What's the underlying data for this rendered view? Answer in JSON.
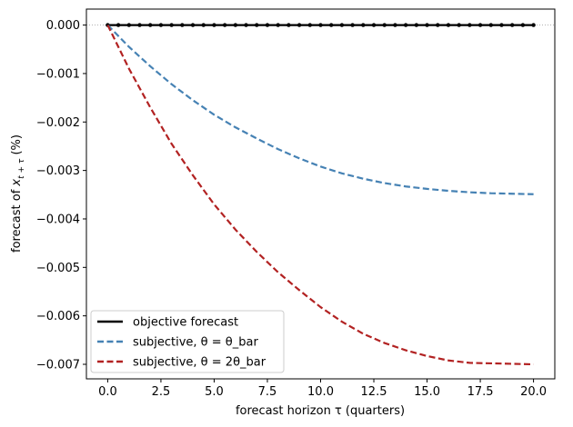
{
  "chart_data": {
    "type": "line",
    "xlabel": "forecast horizon τ (quarters)",
    "ylabel": "forecast of x_{t+τ} (%)",
    "ylabel_parts": {
      "prefix": "forecast of ",
      "var": "x",
      "sub": "t + τ",
      "suffix": " (%)"
    },
    "xlim": [
      -1.0,
      21.0
    ],
    "ylim": [
      -0.0073,
      0.00033
    ],
    "xticks": [
      0,
      2.5,
      5,
      7.5,
      10,
      12.5,
      15,
      17.5,
      20
    ],
    "xtick_labels": [
      "0.0",
      "2.5",
      "5.0",
      "7.5",
      "10.0",
      "12.5",
      "15.0",
      "17.5",
      "20.0"
    ],
    "yticks": [
      0,
      -0.001,
      -0.002,
      -0.003,
      -0.004,
      -0.005,
      -0.006,
      -0.007
    ],
    "ytick_labels": [
      "0.000",
      "−0.001",
      "−0.002",
      "−0.003",
      "−0.004",
      "−0.005",
      "−0.006",
      "−0.007"
    ],
    "grid": false,
    "legend_position": "lower-left",
    "series": [
      {
        "name": "objective forecast",
        "color": "#000000",
        "style": "solid",
        "markers": "dot",
        "x": [
          0,
          0.5,
          1,
          1.5,
          2,
          2.5,
          3,
          3.5,
          4,
          4.5,
          5,
          5.5,
          6,
          6.5,
          7,
          7.5,
          8,
          8.5,
          9,
          9.5,
          10,
          10.5,
          11,
          11.5,
          12,
          12.5,
          13,
          13.5,
          14,
          14.5,
          15,
          15.5,
          16,
          16.5,
          17,
          17.5,
          18,
          18.5,
          19,
          19.5,
          20
        ],
        "y": [
          0,
          0,
          0,
          0,
          0,
          0,
          0,
          0,
          0,
          0,
          0,
          0,
          0,
          0,
          0,
          0,
          0,
          0,
          0,
          0,
          0,
          0,
          0,
          0,
          0,
          0,
          0,
          0,
          0,
          0,
          0,
          0,
          0,
          0,
          0,
          0,
          0,
          0,
          0,
          0,
          0
        ]
      },
      {
        "name": "subjective, θ = θ_bar",
        "color": "#4682b4",
        "style": "dashed",
        "x": [
          0,
          1,
          2,
          3,
          4,
          5,
          6,
          7,
          8,
          9,
          10,
          11,
          12,
          13,
          14,
          15,
          16,
          17,
          18,
          19,
          20
        ],
        "y": [
          0,
          -0.00045,
          -0.00085,
          -0.00122,
          -0.00155,
          -0.00185,
          -0.00211,
          -0.00234,
          -0.00256,
          -0.00275,
          -0.00292,
          -0.00306,
          -0.00317,
          -0.00326,
          -0.00333,
          -0.00338,
          -0.00342,
          -0.00345,
          -0.00347,
          -0.00348,
          -0.00349
        ]
      },
      {
        "name": "subjective, θ = 2θ_bar",
        "color": "#b22222",
        "style": "dashed",
        "x": [
          0,
          1,
          2,
          3,
          4,
          5,
          6,
          7,
          8,
          9,
          10,
          11,
          12,
          13,
          14,
          15,
          16,
          17,
          18,
          19,
          20
        ],
        "y": [
          0,
          -0.0009,
          -0.0017,
          -0.00245,
          -0.0031,
          -0.0037,
          -0.00422,
          -0.00468,
          -0.0051,
          -0.00547,
          -0.00582,
          -0.00612,
          -0.00637,
          -0.00656,
          -0.00671,
          -0.00683,
          -0.00692,
          -0.00697,
          -0.00698,
          -0.00699,
          -0.007
        ]
      }
    ]
  }
}
